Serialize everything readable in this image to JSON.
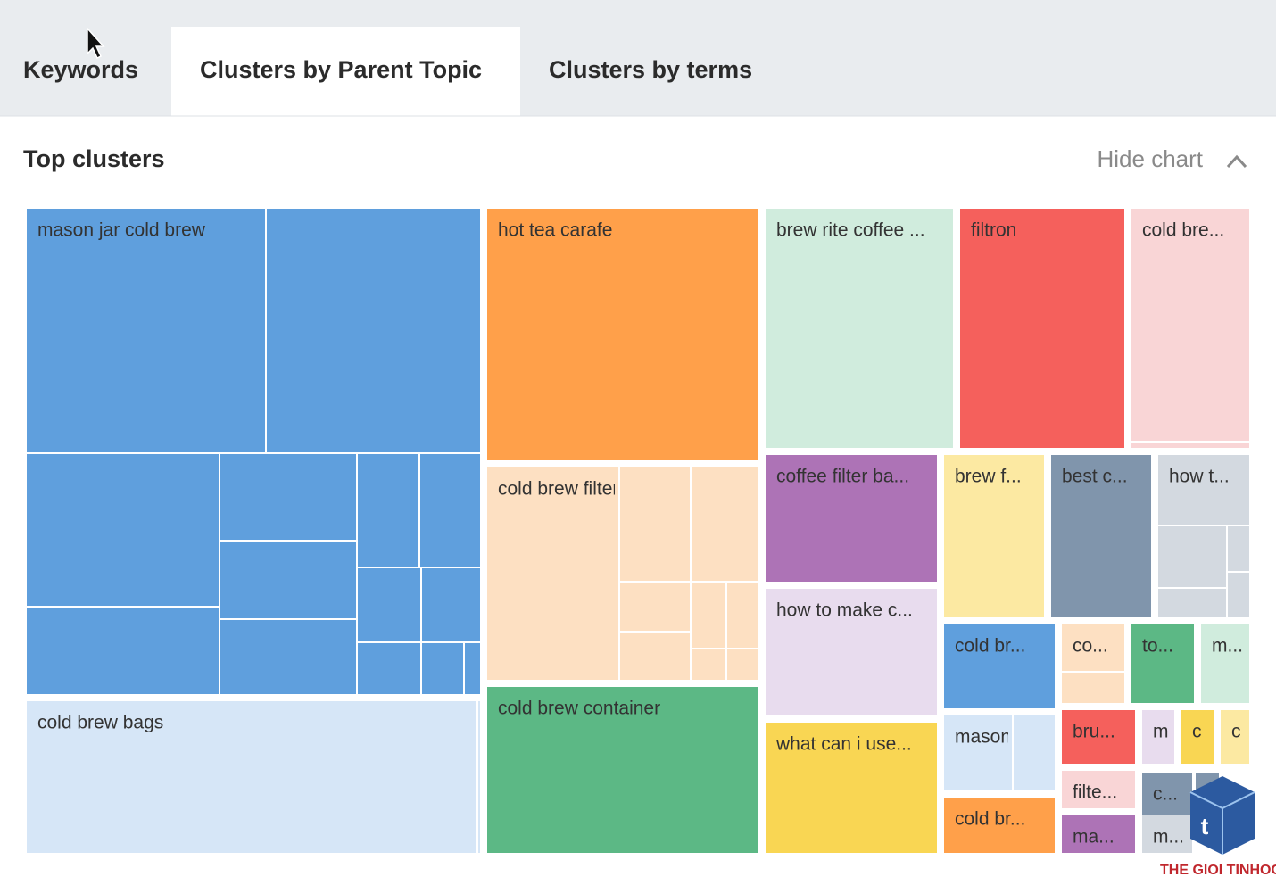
{
  "tabs": [
    "Keywords",
    "Clusters by Parent Topic",
    "Clusters by terms"
  ],
  "active_tab": 1,
  "section": {
    "title": "Top clusters",
    "toggle": "Hide chart"
  },
  "treemap": {
    "tiles": [
      {
        "label": "mason jar cold brew",
        "color": "#5f9fdd"
      },
      {
        "label": "cold brew bags",
        "color": "#d6e6f7"
      },
      {
        "label": "hot tea carafe",
        "color": "#ffa04a"
      },
      {
        "label": "cold brew filter",
        "color": "#fde0c2"
      },
      {
        "label": "cold brew container",
        "color": "#5cb885"
      },
      {
        "label": "brew rite coffee ...",
        "color": "#d0ecdd"
      },
      {
        "label": "filtron",
        "color": "#f5605c"
      },
      {
        "label": "cold bre...",
        "color": "#f9d5d6"
      },
      {
        "label": "coffee filter ba...",
        "color": "#ad73b6"
      },
      {
        "label": "how to make c...",
        "color": "#e8dcee"
      },
      {
        "label": "what can i use...",
        "color": "#f9d653"
      },
      {
        "label": "brew f...",
        "color": "#fce9a2"
      },
      {
        "label": "best c...",
        "color": "#8095ac"
      },
      {
        "label": "how t...",
        "color": "#d3d9e0"
      },
      {
        "label": "cold br...",
        "color": "#5f9fdd"
      },
      {
        "label": "mason j...",
        "color": "#d6e6f7"
      },
      {
        "label": "cold br...",
        "color": "#ffa04a"
      },
      {
        "label": "co...",
        "color": "#fde0c2"
      },
      {
        "label": "to...",
        "color": "#5cb885"
      },
      {
        "label": "m...",
        "color": "#d0ecdd"
      },
      {
        "label": "bru...",
        "color": "#f5605c"
      },
      {
        "label": "m",
        "color": "#e8dcee"
      },
      {
        "label": "c",
        "color": "#f9d653"
      },
      {
        "label": "c",
        "color": "#fce9a2"
      },
      {
        "label": "filte...",
        "color": "#f9d5d6"
      },
      {
        "label": "ma...",
        "color": "#ad73b6"
      },
      {
        "label": "c...",
        "color": "#8095ac"
      },
      {
        "label": "m...",
        "color": "#d3d9e0"
      }
    ]
  },
  "watermark": "THE GIOI TINHOC"
}
